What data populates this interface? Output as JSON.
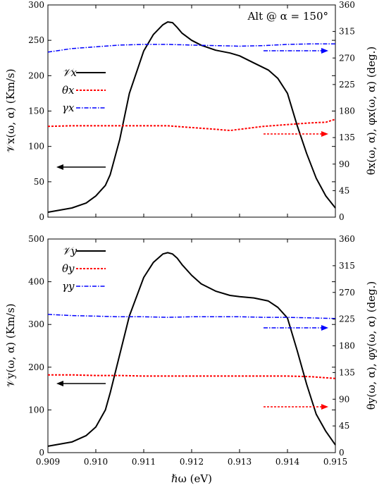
{
  "chart_data": [
    {
      "type": "line",
      "annotation": "Alt @ α = 150°",
      "xlim": [
        0.909,
        0.915
      ],
      "ylim": [
        0,
        300
      ],
      "y2lim": [
        0,
        360
      ],
      "yticks": [
        "0",
        "50",
        "100",
        "150",
        "200",
        "250",
        "300"
      ],
      "y2ticks": [
        "0",
        "45",
        "90",
        "135",
        "180",
        "225",
        "270",
        "315",
        "360"
      ],
      "ylabel": "𝒱x(ω, α) (Km/s)",
      "y2label": "θx(ω, α),  φx(ω, α) (deg.)",
      "legend": [
        "𝒱x",
        "θx",
        "γx"
      ],
      "series": [
        {
          "name": "𝒱x",
          "axis": "left",
          "color": "#000000",
          "x": [
            0.909,
            0.9095,
            0.9098,
            0.91,
            0.9102,
            0.9103,
            0.9105,
            0.9107,
            0.9109,
            0.911,
            0.9112,
            0.9114,
            0.9115,
            0.9116,
            0.9117,
            0.9118,
            0.912,
            0.9122,
            0.9125,
            0.9128,
            0.913,
            0.9133,
            0.9136,
            0.9138,
            0.914,
            0.9142,
            0.9144,
            0.9146,
            0.9148,
            0.915
          ],
          "y": [
            7,
            13,
            20,
            30,
            45,
            60,
            110,
            175,
            215,
            235,
            258,
            272,
            276,
            275,
            268,
            260,
            250,
            243,
            236,
            232,
            228,
            218,
            208,
            196,
            175,
            130,
            90,
            55,
            30,
            13
          ]
        },
        {
          "name": "θx",
          "axis": "right",
          "color": "#ff0000",
          "x": [
            0.909,
            0.9095,
            0.91,
            0.9105,
            0.911,
            0.9115,
            0.912,
            0.9125,
            0.9128,
            0.913,
            0.9135,
            0.914,
            0.9145,
            0.9148,
            0.915
          ],
          "y": [
            154,
            155,
            155,
            155,
            155,
            155,
            152,
            149,
            147,
            149,
            154,
            157,
            160,
            161,
            166
          ]
        },
        {
          "name": "γx",
          "axis": "right",
          "color": "#0000ff",
          "x": [
            0.909,
            0.9095,
            0.91,
            0.9105,
            0.911,
            0.9115,
            0.912,
            0.9125,
            0.913,
            0.9135,
            0.914,
            0.9145,
            0.915
          ],
          "y": [
            280,
            286,
            289,
            292,
            293,
            293,
            292,
            291,
            290,
            291,
            293,
            294,
            294
          ]
        }
      ]
    },
    {
      "type": "line",
      "xlim": [
        0.909,
        0.915
      ],
      "ylim": [
        0,
        500
      ],
      "y2lim": [
        0,
        360
      ],
      "xlabel": "ℏω (eV)",
      "xticks": [
        "0.909",
        "0.910",
        "0.911",
        "0.912",
        "0.913",
        "0.914",
        "0.915"
      ],
      "yticks": [
        "0",
        "100",
        "200",
        "300",
        "400",
        "500"
      ],
      "y2ticks": [
        "0",
        "45",
        "90",
        "135",
        "180",
        "225",
        "270",
        "315",
        "360"
      ],
      "ylabel": "𝒱y(ω, α) (Km/s)",
      "y2label": "θy(ω, α),  φy(ω, α) (deg.)",
      "legend": [
        "𝒱y",
        "θy",
        "γy"
      ],
      "series": [
        {
          "name": "𝒱y",
          "axis": "left",
          "color": "#000000",
          "x": [
            0.909,
            0.9095,
            0.9098,
            0.91,
            0.9102,
            0.9103,
            0.9105,
            0.9107,
            0.9109,
            0.911,
            0.9112,
            0.9114,
            0.9115,
            0.9116,
            0.9117,
            0.9118,
            0.912,
            0.9122,
            0.9125,
            0.9128,
            0.913,
            0.9133,
            0.9136,
            0.9138,
            0.914,
            0.9142,
            0.9144,
            0.9146,
            0.9148,
            0.915
          ],
          "y": [
            15,
            25,
            40,
            60,
            100,
            140,
            230,
            320,
            380,
            410,
            445,
            465,
            468,
            465,
            455,
            440,
            415,
            395,
            378,
            368,
            365,
            362,
            355,
            340,
            315,
            240,
            160,
            90,
            50,
            18
          ]
        },
        {
          "name": "θy",
          "axis": "right",
          "color": "#ff0000",
          "x": [
            0.909,
            0.9095,
            0.91,
            0.9105,
            0.911,
            0.9115,
            0.912,
            0.9125,
            0.913,
            0.9135,
            0.914,
            0.9145,
            0.915
          ],
          "y": [
            131,
            131,
            130,
            130,
            129,
            129,
            129,
            129,
            129,
            129,
            129,
            128,
            125
          ]
        },
        {
          "name": "γy",
          "axis": "right",
          "color": "#0000ff",
          "x": [
            0.909,
            0.9095,
            0.91,
            0.9105,
            0.911,
            0.9115,
            0.912,
            0.9125,
            0.913,
            0.9135,
            0.914,
            0.9145,
            0.915
          ],
          "y": [
            233,
            231,
            230,
            229,
            229,
            228,
            229,
            229,
            229,
            228,
            228,
            227,
            226
          ]
        }
      ]
    }
  ]
}
